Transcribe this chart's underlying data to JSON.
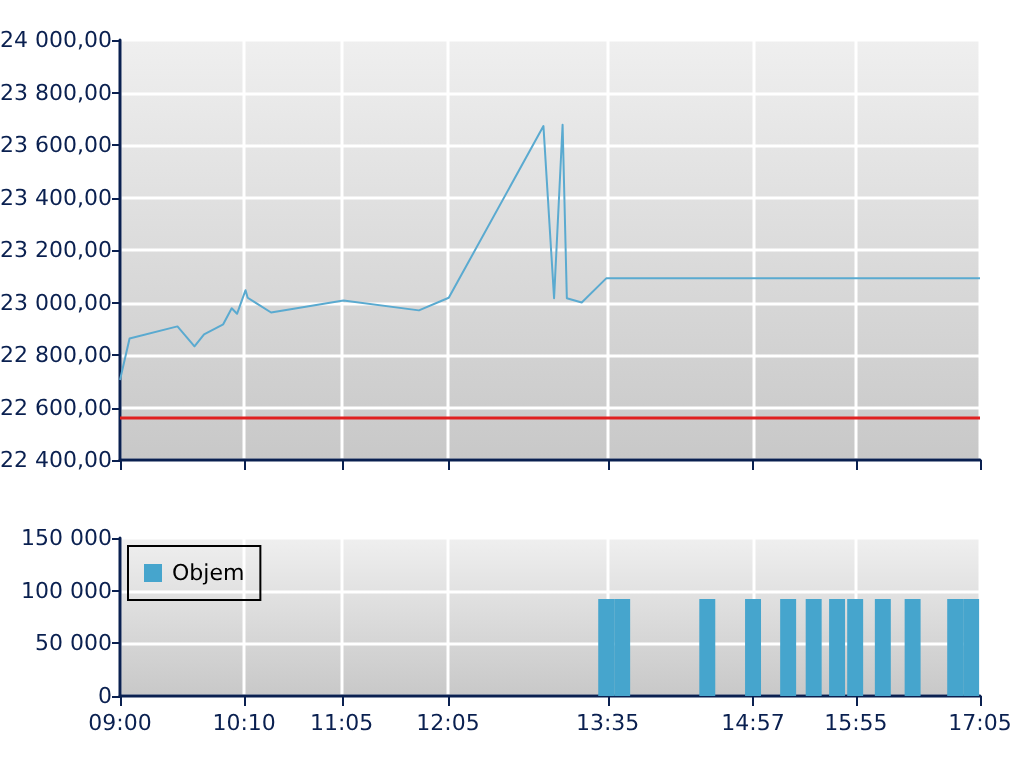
{
  "chart_data": [
    {
      "type": "line",
      "xlim": [
        9,
        17.0833
      ],
      "xticks": [
        {
          "value": 9,
          "label": null
        },
        {
          "value": 10.1667,
          "label": null
        },
        {
          "value": 11.0833,
          "label": null
        },
        {
          "value": 12.0833,
          "label": null
        },
        {
          "value": 13.5833,
          "label": null
        },
        {
          "value": 14.95,
          "label": null
        },
        {
          "value": 15.9167,
          "label": null
        },
        {
          "value": 17.0833,
          "label": null
        }
      ],
      "ylim": [
        22400,
        24000
      ],
      "yticks": [
        {
          "value": 22400,
          "label": "22 400,00"
        },
        {
          "value": 22600,
          "label": "22 600,00"
        },
        {
          "value": 22800,
          "label": "22 800,00"
        },
        {
          "value": 23000,
          "label": "23 000,00"
        },
        {
          "value": 23200,
          "label": "23 200,00"
        },
        {
          "value": 23400,
          "label": "23 400,00"
        },
        {
          "value": 23600,
          "label": "23 600,00"
        },
        {
          "value": 23800,
          "label": "23 800,00"
        },
        {
          "value": 24000,
          "label": "24 000,00"
        }
      ],
      "series": [
        {
          "color": "#5aaad0",
          "x": [
            9,
            9.09,
            9.54,
            9.7,
            9.79,
            9.97,
            10.05,
            10.1,
            10.18,
            10.2,
            10.42,
            11.1,
            11.81,
            12.09,
            12.98,
            13.08,
            13.16,
            13.2,
            13.34,
            13.57,
            17.0833
          ],
          "values": [
            22705,
            22863,
            22909,
            22833,
            22879,
            22917,
            22978,
            22957,
            23047,
            23018,
            22962,
            23008,
            22970,
            23018,
            23672,
            23016,
            23677,
            23016,
            23000,
            23092,
            23092
          ]
        }
      ],
      "ref_lines": [
        {
          "axis": "y",
          "value": 22565,
          "color": "#e02020"
        }
      ],
      "grid": true,
      "tick_labels": "y",
      "marker": "none"
    },
    {
      "type": "bar",
      "xlim": [
        9,
        17.0833
      ],
      "xticks": [
        {
          "value": 9,
          "label": "09:00"
        },
        {
          "value": 10.1667,
          "label": "10:10"
        },
        {
          "value": 11.0833,
          "label": "11:05"
        },
        {
          "value": 12.0833,
          "label": "12:05"
        },
        {
          "value": 13.5833,
          "label": "13:35"
        },
        {
          "value": 14.95,
          "label": "14:57"
        },
        {
          "value": 15.9167,
          "label": "15:55"
        },
        {
          "value": 17.0833,
          "label": "17:05"
        }
      ],
      "ylim": [
        0,
        150000
      ],
      "yticks": [
        {
          "value": 0,
          "label": "0"
        },
        {
          "value": 50000,
          "label": "50 000"
        },
        {
          "value": 100000,
          "label": "100 000"
        },
        {
          "value": 150000,
          "label": "150 000"
        }
      ],
      "series": [
        {
          "name": "Objem",
          "color": "#46a5cd",
          "x": [
            13.57,
            13.72,
            14.52,
            14.95,
            15.28,
            15.52,
            15.74,
            15.91,
            16.17,
            16.45,
            16.85,
            17.0
          ],
          "values": [
            92000,
            92000,
            92000,
            92000,
            92000,
            92000,
            92000,
            92000,
            92000,
            92000,
            92000,
            92000
          ]
        }
      ],
      "grid": true,
      "legend": "top left"
    }
  ]
}
